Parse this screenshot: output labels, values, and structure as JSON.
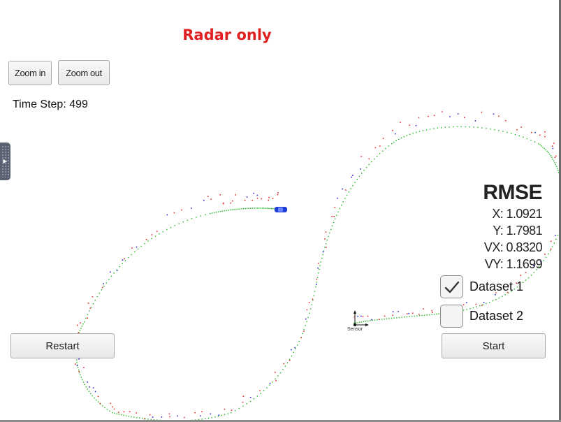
{
  "mode_title": "Radar only",
  "toolbar": {
    "zoom_in_label": "Zoom in",
    "zoom_out_label": "Zoom out"
  },
  "time_step_text": "Time Step: 499",
  "rmse": {
    "title": "RMSE",
    "x": "X: 1.0921",
    "y": "Y: 1.7981",
    "vx": "VX: 0.8320",
    "vy": "VY: 1.1699"
  },
  "datasets": [
    {
      "label": "Dataset 1",
      "checked": true
    },
    {
      "label": "Dataset 2",
      "checked": false
    }
  ],
  "buttons": {
    "restart_label": "Restart",
    "start_label": "Start"
  },
  "sensor_label": "Sensor",
  "colors": {
    "title": "#e02020",
    "ground_truth": "#19b619",
    "radar_measurement": "#e03030",
    "estimate": "#2a2ad0",
    "car": "#1f3fd6"
  }
}
